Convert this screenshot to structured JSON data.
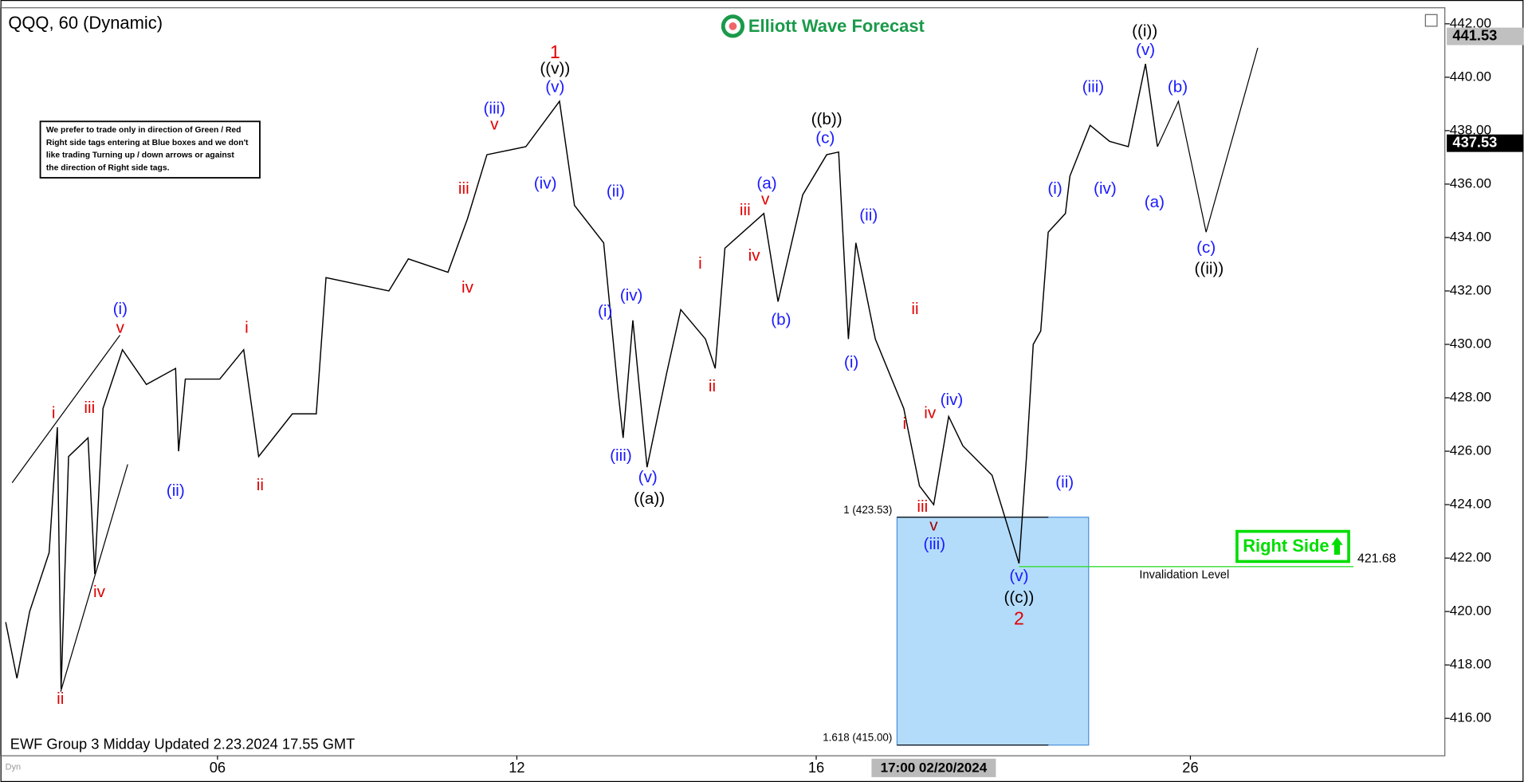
{
  "chart_data": {
    "type": "line",
    "title": "QQQ, 60 (Dynamic)",
    "logo": "Elliott Wave Forecast",
    "footer": "EWF Group 3 Midday Updated 2.23.2024 17.55 GMT",
    "corner_label": "Dyn",
    "note": [
      "We prefer to trade only in direction of Green / Red",
      "Right side tags entering at Blue boxes and we don't",
      "like trading Turning up / down arrows or against",
      "the direction of Right side tags."
    ],
    "color": "#000000",
    "x": [
      -2.83,
      -2.68,
      -2.51,
      -2.25,
      -2.14,
      -2.09,
      -1.99,
      -1.73,
      -1.64,
      -1.53,
      -1.27,
      -0.95,
      -0.56,
      -0.52,
      -0.43,
      0.03,
      0.35,
      0.55,
      1.0,
      1.32,
      1.45,
      2.29,
      2.55,
      3.08,
      3.34,
      3.6,
      4.12,
      4.57,
      4.77,
      5.16,
      5.35,
      5.42,
      5.55,
      5.74,
      6.0,
      6.19,
      6.52,
      6.65,
      6.78,
      7.3,
      7.49,
      7.82,
      8.14,
      8.3,
      8.43,
      8.53,
      8.79,
      9.17,
      9.38,
      9.57,
      9.77,
      9.96,
      10.35,
      10.71,
      10.81,
      10.9,
      11.0,
      11.1,
      11.33,
      11.39,
      11.66,
      11.92,
      12.17,
      12.4,
      12.56
    ],
    "values": [
      419.6,
      417.5,
      420.0,
      422.2,
      426.9,
      417.1,
      425.8,
      426.5,
      421.4,
      427.6,
      429.8,
      428.5,
      429.1,
      426.0,
      428.7,
      428.7,
      429.8,
      425.8,
      427.4,
      427.4,
      432.5,
      432.0,
      433.2,
      432.7,
      434.7,
      437.1,
      437.4,
      439.1,
      435.2,
      433.8,
      428.3,
      426.5,
      430.9,
      425.4,
      428.9,
      431.3,
      430.2,
      429.1,
      433.6,
      434.9,
      431.6,
      435.6,
      437.1,
      437.2,
      430.2,
      433.8,
      430.2,
      427.6,
      424.7,
      424.0,
      427.3,
      426.2,
      425.1,
      421.8,
      425.8,
      430.0,
      430.5,
      434.2,
      434.9,
      436.3,
      438.2,
      437.6,
      437.4,
      440.5,
      437.4
    ],
    "projection": {
      "color": "#000000",
      "x": [
        12.56,
        12.84,
        13.21,
        13.9
      ],
      "values": [
        437.4,
        439.1,
        434.2,
        441.1
      ]
    },
    "xlim": [
      -2.9,
      16.4
    ],
    "xticks": [
      {
        "value": 0,
        "label": "06"
      },
      {
        "value": 4,
        "label": "12"
      },
      {
        "value": 8,
        "label": "16"
      },
      {
        "value": 13,
        "label": "26"
      }
    ],
    "crosshair": {
      "value": 9.57,
      "label": "17:00 02/20/2024"
    },
    "ylim": [
      414.6,
      442.6
    ],
    "yticks": [
      {
        "value": 416,
        "label": "416.00"
      },
      {
        "value": 418,
        "label": "418.00"
      },
      {
        "value": 420,
        "label": "420.00"
      },
      {
        "value": 422,
        "label": "422.00"
      },
      {
        "value": 424,
        "label": "424.00"
      },
      {
        "value": 426,
        "label": "426.00"
      },
      {
        "value": 428,
        "label": "428.00"
      },
      {
        "value": 430,
        "label": "430.00"
      },
      {
        "value": 432,
        "label": "432.00"
      },
      {
        "value": 434,
        "label": "434.00"
      },
      {
        "value": 436,
        "label": "436.00"
      },
      {
        "value": 438,
        "label": "438.00"
      },
      {
        "value": 440,
        "label": "440.00"
      },
      {
        "value": 442,
        "label": "442.00"
      }
    ],
    "price_markers": [
      {
        "value": 441.53,
        "label": "441.53",
        "color": "#c0c0c0"
      },
      {
        "value": 437.53,
        "label": "437.53",
        "color": "#000000"
      }
    ],
    "zone": {
      "x": [
        9.08,
        11.64
      ],
      "color": "#b3dcfb",
      "levels": [
        {
          "value": 423.53,
          "label": "1 (423.53)"
        },
        {
          "value": 415.0,
          "label": "1.618 (415.00)"
        }
      ]
    },
    "invalidation": {
      "value": 421.68,
      "label": "421.68",
      "text": "Invalidation Level",
      "x": [
        10.71,
        15.18
      ],
      "color": "#33dd33"
    },
    "tag": {
      "text": "Right Side",
      "color": "#00dd00"
    },
    "annotations": [
      {
        "text": "1",
        "x": 4.51,
        "y": 440.9,
        "color": "#e00000"
      },
      {
        "text": "2",
        "x": 10.71,
        "y": 419.7,
        "color": "#e00000"
      },
      {
        "text": "i",
        "x": -2.19,
        "y": 427.4,
        "color": "#e00000"
      },
      {
        "text": "ii",
        "x": -2.1,
        "y": 416.7,
        "color": "#e00000"
      },
      {
        "text": "iii",
        "x": -1.71,
        "y": 427.6,
        "color": "#e00000"
      },
      {
        "text": "iv",
        "x": -1.58,
        "y": 420.7,
        "color": "#e00000"
      },
      {
        "text": "v",
        "x": -1.3,
        "y": 430.6,
        "color": "#e00000"
      },
      {
        "text": "i",
        "x": 0.39,
        "y": 430.6,
        "color": "#e00000"
      },
      {
        "text": "ii",
        "x": 0.57,
        "y": 424.7,
        "color": "#e00000"
      },
      {
        "text": "iii",
        "x": 3.29,
        "y": 435.8,
        "color": "#e00000"
      },
      {
        "text": "iv",
        "x": 3.34,
        "y": 432.1,
        "color": "#e00000"
      },
      {
        "text": "v",
        "x": 3.7,
        "y": 438.2,
        "color": "#e00000"
      },
      {
        "text": "i",
        "x": 6.45,
        "y": 433.0,
        "color": "#e00000"
      },
      {
        "text": "ii",
        "x": 6.61,
        "y": 428.4,
        "color": "#e00000"
      },
      {
        "text": "iii",
        "x": 7.05,
        "y": 435.0,
        "color": "#e00000"
      },
      {
        "text": "iv",
        "x": 7.17,
        "y": 433.3,
        "color": "#e00000"
      },
      {
        "text": "v",
        "x": 7.32,
        "y": 435.4,
        "color": "#e00000"
      },
      {
        "text": "ii",
        "x": 9.32,
        "y": 431.3,
        "color": "#e00000"
      },
      {
        "text": "i",
        "x": 9.18,
        "y": 427.0,
        "color": "#e00000"
      },
      {
        "text": "iv",
        "x": 9.52,
        "y": 427.4,
        "color": "#e00000"
      },
      {
        "text": "iii",
        "x": 9.42,
        "y": 423.9,
        "color": "#e00000"
      },
      {
        "text": "v",
        "x": 9.57,
        "y": 423.2,
        "color": "#a00000"
      },
      {
        "text": "(i)",
        "x": -1.3,
        "y": 431.3,
        "color": "#1a1aff"
      },
      {
        "text": "(ii)",
        "x": -0.56,
        "y": 424.5,
        "color": "#1a1aff"
      },
      {
        "text": "(iii)",
        "x": 3.7,
        "y": 438.8,
        "color": "#1a1aff"
      },
      {
        "text": "(iv)",
        "x": 4.38,
        "y": 436.0,
        "color": "#1a1aff"
      },
      {
        "text": "(v)",
        "x": 4.51,
        "y": 439.6,
        "color": "#1a1aff"
      },
      {
        "text": "(ii)",
        "x": 5.32,
        "y": 435.7,
        "color": "#1a1aff"
      },
      {
        "text": "(i)",
        "x": 5.18,
        "y": 431.2,
        "color": "#1a1aff"
      },
      {
        "text": "(iv)",
        "x": 5.53,
        "y": 431.8,
        "color": "#1a1aff"
      },
      {
        "text": "(iii)",
        "x": 5.39,
        "y": 425.8,
        "color": "#1a1aff"
      },
      {
        "text": "(v)",
        "x": 5.75,
        "y": 425.0,
        "color": "#1a1aff"
      },
      {
        "text": "(a)",
        "x": 7.34,
        "y": 436.0,
        "color": "#1a1aff"
      },
      {
        "text": "(b)",
        "x": 7.53,
        "y": 430.9,
        "color": "#1a1aff"
      },
      {
        "text": "(c)",
        "x": 8.12,
        "y": 437.7,
        "color": "#1a1aff"
      },
      {
        "text": "(ii)",
        "x": 8.7,
        "y": 434.8,
        "color": "#1a1aff"
      },
      {
        "text": "(i)",
        "x": 8.47,
        "y": 429.3,
        "color": "#1a1aff"
      },
      {
        "text": "(iv)",
        "x": 9.81,
        "y": 427.9,
        "color": "#1a1aff"
      },
      {
        "text": "(iii)",
        "x": 9.58,
        "y": 422.5,
        "color": "#1a1aff"
      },
      {
        "text": "(v)",
        "x": 10.71,
        "y": 421.3,
        "color": "#1a1aff"
      },
      {
        "text": "(ii)",
        "x": 11.32,
        "y": 424.8,
        "color": "#1a1aff"
      },
      {
        "text": "(i)",
        "x": 11.19,
        "y": 435.8,
        "color": "#1a1aff"
      },
      {
        "text": "(iv)",
        "x": 11.86,
        "y": 435.8,
        "color": "#1a1aff"
      },
      {
        "text": "(iii)",
        "x": 11.7,
        "y": 439.6,
        "color": "#1a1aff"
      },
      {
        "text": "(v)",
        "x": 12.4,
        "y": 441.0,
        "color": "#1a1aff"
      },
      {
        "text": "(a)",
        "x": 12.52,
        "y": 435.3,
        "color": "#1a1aff"
      },
      {
        "text": "(b)",
        "x": 12.83,
        "y": 439.6,
        "color": "#1a1aff"
      },
      {
        "text": "(c)",
        "x": 13.21,
        "y": 433.6,
        "color": "#1a1aff"
      },
      {
        "text": "((v))",
        "x": 4.51,
        "y": 440.3,
        "color": "#000000"
      },
      {
        "text": "((a))",
        "x": 5.77,
        "y": 424.2,
        "color": "#000000"
      },
      {
        "text": "((b))",
        "x": 8.14,
        "y": 438.4,
        "color": "#000000"
      },
      {
        "text": "((c))",
        "x": 10.71,
        "y": 420.5,
        "color": "#000000"
      },
      {
        "text": "((i))",
        "x": 12.39,
        "y": 441.7,
        "color": "#000000"
      },
      {
        "text": "((ii))",
        "x": 13.25,
        "y": 432.8,
        "color": "#000000"
      }
    ]
  }
}
